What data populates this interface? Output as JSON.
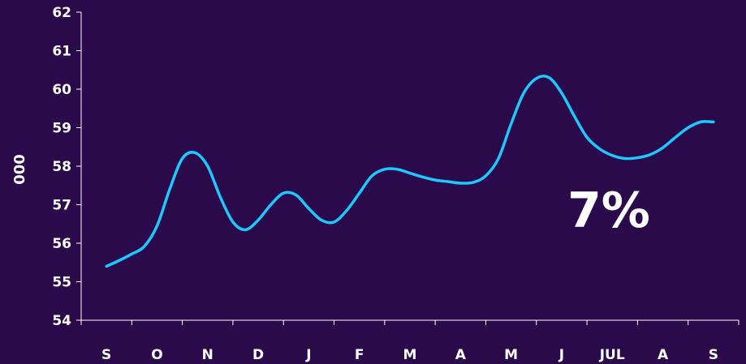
{
  "chart_data": {
    "type": "line",
    "title": "",
    "xlabel": "",
    "ylabel": "000",
    "ylim": [
      54,
      62
    ],
    "yticks": [
      54,
      55,
      56,
      57,
      58,
      59,
      60,
      61,
      62
    ],
    "categories": [
      "S",
      "O",
      "N",
      "D",
      "J",
      "F",
      "M",
      "A",
      "M",
      "J",
      "JUL",
      "A",
      "S"
    ],
    "grid": false,
    "legend": "none",
    "annotation": "7%",
    "colors": {
      "background": "#2a0a4a",
      "line": "#1ec8ff",
      "axis": "#ffffff",
      "text": "#ffffff"
    },
    "series": [
      {
        "x": [
          0,
          0.25,
          0.5,
          0.75,
          1,
          1.25,
          1.5,
          1.75,
          2,
          2.25,
          2.5,
          2.75,
          3,
          3.25,
          3.5,
          3.75,
          4,
          4.25,
          4.5,
          4.75,
          5,
          5.25,
          5.5,
          5.75,
          6,
          6.25,
          6.5,
          6.75,
          7,
          7.25,
          7.5,
          7.75,
          8,
          8.25,
          8.5,
          8.75,
          9,
          9.25,
          9.5,
          9.75,
          10,
          10.25,
          10.5,
          10.75,
          11,
          11.25,
          11.5,
          11.75,
          12
        ],
        "values": [
          55.4,
          55.55,
          55.72,
          55.92,
          56.45,
          57.4,
          58.2,
          58.35,
          58.0,
          57.2,
          56.55,
          56.35,
          56.6,
          57.0,
          57.3,
          57.25,
          56.9,
          56.6,
          56.55,
          56.85,
          57.3,
          57.75,
          57.92,
          57.92,
          57.82,
          57.72,
          57.64,
          57.6,
          57.56,
          57.58,
          57.75,
          58.2,
          59.1,
          59.9,
          60.28,
          60.3,
          59.9,
          59.3,
          58.75,
          58.45,
          58.28,
          58.2,
          58.22,
          58.3,
          58.48,
          58.75,
          59.0,
          59.15,
          59.15
        ]
      }
    ]
  }
}
